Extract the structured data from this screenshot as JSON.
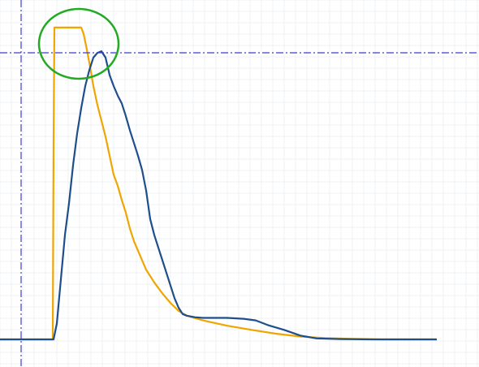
{
  "chart_data": {
    "type": "line",
    "title": "",
    "xlabel": "",
    "ylabel": "",
    "xlim": [
      0,
      590
    ],
    "ylim": [
      0,
      1
    ],
    "grid": true,
    "series": [
      {
        "color": "#f0a500",
        "x": [
          0,
          65,
          66,
          67,
          100,
          103,
          107,
          111,
          115,
          120,
          125,
          130,
          135,
          140,
          145,
          150,
          155,
          160,
          165,
          170,
          175,
          180,
          190,
          200,
          210,
          220,
          230,
          250,
          280,
          310,
          340,
          370,
          400,
          430,
          470,
          500,
          538
        ],
        "y": [
          0.0,
          0.0,
          0.62,
          0.985,
          0.985,
          0.965,
          0.915,
          0.86,
          0.8,
          0.74,
          0.69,
          0.64,
          0.58,
          0.52,
          0.485,
          0.44,
          0.4,
          0.35,
          0.31,
          0.28,
          0.25,
          0.22,
          0.18,
          0.145,
          0.115,
          0.09,
          0.075,
          0.06,
          0.043,
          0.03,
          0.018,
          0.009,
          0.004,
          0.002,
          0.0,
          0.0,
          0.0
        ]
      },
      {
        "color": "#1f4e8c",
        "x": [
          0,
          66,
          70,
          75,
          80,
          85,
          90,
          95,
          100,
          105,
          110,
          115,
          120,
          125,
          130,
          135,
          140,
          145,
          150,
          155,
          160,
          165,
          170,
          175,
          180,
          185,
          190,
          195,
          200,
          205,
          210,
          215,
          220,
          225,
          230,
          240,
          250,
          260,
          280,
          300,
          315,
          330,
          350,
          370,
          390,
          420,
          460,
          500,
          538
        ],
        "y": [
          0.0,
          0.0,
          0.05,
          0.19,
          0.33,
          0.43,
          0.55,
          0.65,
          0.73,
          0.8,
          0.85,
          0.89,
          0.905,
          0.91,
          0.89,
          0.835,
          0.8,
          0.77,
          0.745,
          0.705,
          0.66,
          0.62,
          0.58,
          0.535,
          0.47,
          0.38,
          0.33,
          0.29,
          0.25,
          0.21,
          0.17,
          0.13,
          0.1,
          0.08,
          0.075,
          0.07,
          0.068,
          0.068,
          0.068,
          0.065,
          0.06,
          0.045,
          0.03,
          0.012,
          0.003,
          0.001,
          0.0,
          0.0,
          0.0
        ]
      }
    ],
    "reference_lines": [
      {
        "orientation": "vertical",
        "color": "#3a3fd0",
        "style": "dash-dot"
      },
      {
        "orientation": "horizontal",
        "color": "#3a3fd0",
        "style": "dash-dot"
      }
    ],
    "annotation": {
      "shape": "ellipse",
      "color": "#22aa22"
    }
  }
}
